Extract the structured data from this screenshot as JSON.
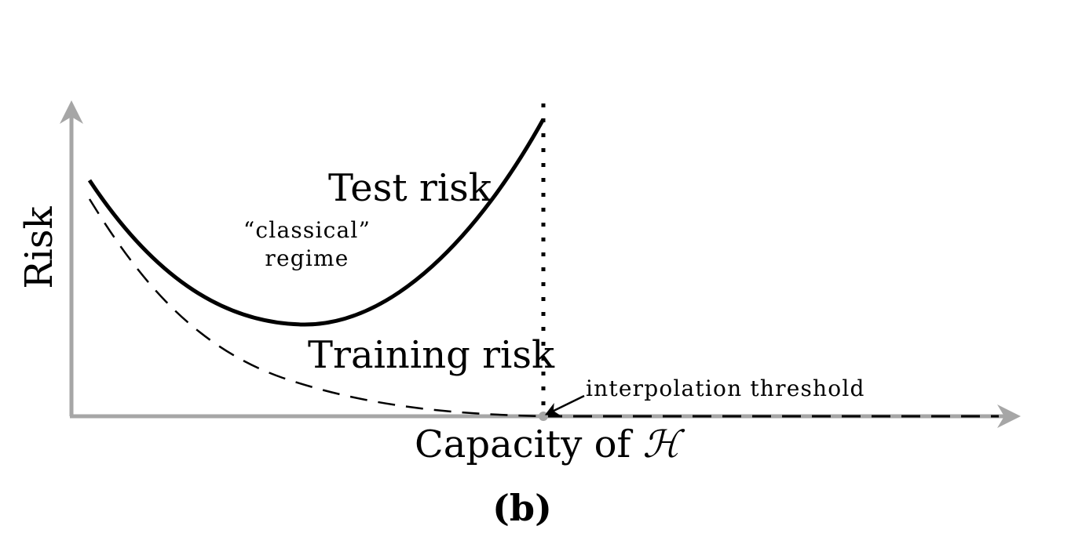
{
  "diagram": {
    "y_axis_label": "Risk",
    "x_axis_label": "Capacity of ",
    "x_axis_symbol": "ℋ",
    "test_curve_label": "Test risk",
    "train_curve_label": "Training risk",
    "regime_label_line1": "“classical”",
    "regime_label_line2": "regime",
    "threshold_label": "interpolation threshold",
    "caption": "(b)",
    "axis_color": "#a6a6a6",
    "curve_color": "#000000"
  }
}
